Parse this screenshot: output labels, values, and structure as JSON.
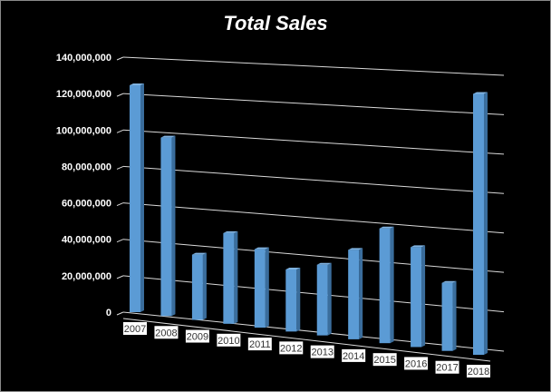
{
  "chart_data": {
    "type": "bar",
    "title": "Total Sales",
    "categories": [
      "2007",
      "2008",
      "2009",
      "2010",
      "2011",
      "2012",
      "2013",
      "2014",
      "2015",
      "2016",
      "2017",
      "2018"
    ],
    "values": [
      125000000,
      97000000,
      35000000,
      48000000,
      41000000,
      32000000,
      36000000,
      45000000,
      57000000,
      49000000,
      33000000,
      125000000
    ],
    "ylim": [
      0,
      140000000
    ],
    "yticks": [
      "0",
      "20,000,000",
      "40,000,000",
      "60,000,000",
      "80,000,000",
      "100,000,000",
      "120,000,000",
      "140,000,000"
    ],
    "xlabel": "",
    "ylabel": "",
    "grid": true,
    "style": "3d-perspective",
    "colors": {
      "bar": "#5b9bd5",
      "bar_side": "#3a6d9c",
      "bar_top": "#7fb2e0",
      "background": "#000000",
      "grid": "#d9d9d9"
    }
  }
}
